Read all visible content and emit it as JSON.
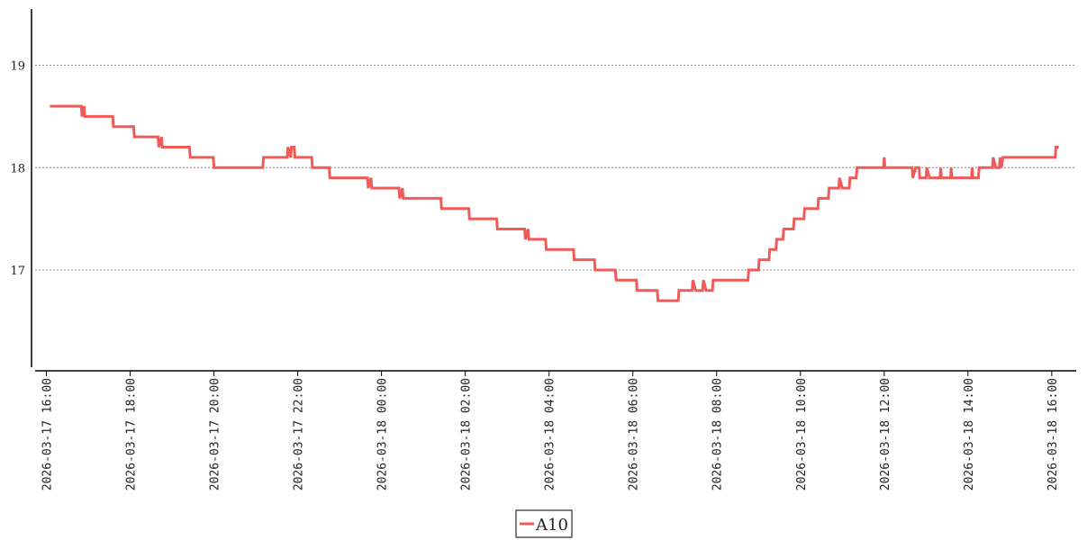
{
  "chart_data": {
    "type": "line",
    "title": "",
    "xlabel": "",
    "ylabel": "",
    "ylim": [
      16.05,
      19.55
    ],
    "xlim": [
      "2026-03-17 15:40",
      "2026-03-18 16:35"
    ],
    "y_ticks": [
      {
        "value": 17,
        "label": "17"
      },
      {
        "value": 18,
        "label": "18"
      },
      {
        "value": 19,
        "label": "19"
      }
    ],
    "x_ticks": [
      {
        "value": "2026-03-17 16:00",
        "label": "2026-03-17 16:00"
      },
      {
        "value": "2026-03-17 18:00",
        "label": "2026-03-17 18:00"
      },
      {
        "value": "2026-03-17 20:00",
        "label": "2026-03-17 20:00"
      },
      {
        "value": "2026-03-17 22:00",
        "label": "2026-03-17 22:00"
      },
      {
        "value": "2026-03-18 00:00",
        "label": "2026-03-18 00:00"
      },
      {
        "value": "2026-03-18 02:00",
        "label": "2026-03-18 02:00"
      },
      {
        "value": "2026-03-18 04:00",
        "label": "2026-03-18 04:00"
      },
      {
        "value": "2026-03-18 06:00",
        "label": "2026-03-18 06:00"
      },
      {
        "value": "2026-03-18 08:00",
        "label": "2026-03-18 08:00"
      },
      {
        "value": "2026-03-18 10:00",
        "label": "2026-03-18 10:00"
      },
      {
        "value": "2026-03-18 12:00",
        "label": "2026-03-18 12:00"
      },
      {
        "value": "2026-03-18 14:00",
        "label": "2026-03-18 14:00"
      },
      {
        "value": "2026-03-18 16:00",
        "label": "2026-03-18 16:00"
      }
    ],
    "grid": "horizontal dotted",
    "legend_position": "bottom-center",
    "series": [
      {
        "name": "A10",
        "color": "#f05a57",
        "points": [
          [
            "2026-03-17 16:05",
            18.6
          ],
          [
            "2026-03-17 16:50",
            18.6
          ],
          [
            "2026-03-17 16:51",
            18.5
          ],
          [
            "2026-03-17 16:54",
            18.6
          ],
          [
            "2026-03-17 16:55",
            18.5
          ],
          [
            "2026-03-17 17:35",
            18.5
          ],
          [
            "2026-03-17 17:36",
            18.4
          ],
          [
            "2026-03-17 18:05",
            18.4
          ],
          [
            "2026-03-17 18:06",
            18.3
          ],
          [
            "2026-03-17 18:40",
            18.3
          ],
          [
            "2026-03-17 18:41",
            18.2
          ],
          [
            "2026-03-17 18:45",
            18.3
          ],
          [
            "2026-03-17 18:46",
            18.2
          ],
          [
            "2026-03-17 19:25",
            18.2
          ],
          [
            "2026-03-17 19:26",
            18.1
          ],
          [
            "2026-03-17 19:59",
            18.1
          ],
          [
            "2026-03-17 20:00",
            18.0
          ],
          [
            "2026-03-17 21:10",
            18.0
          ],
          [
            "2026-03-17 21:11",
            18.1
          ],
          [
            "2026-03-17 21:45",
            18.1
          ],
          [
            "2026-03-17 21:46",
            18.2
          ],
          [
            "2026-03-17 21:50",
            18.1
          ],
          [
            "2026-03-17 21:51",
            18.2
          ],
          [
            "2026-03-17 21:55",
            18.2
          ],
          [
            "2026-03-17 21:56",
            18.1
          ],
          [
            "2026-03-17 22:20",
            18.1
          ],
          [
            "2026-03-17 22:21",
            18.0
          ],
          [
            "2026-03-17 22:45",
            18.0
          ],
          [
            "2026-03-17 22:46",
            17.9
          ],
          [
            "2026-03-17 23:40",
            17.9
          ],
          [
            "2026-03-17 23:41",
            17.8
          ],
          [
            "2026-03-17 23:45",
            17.9
          ],
          [
            "2026-03-17 23:46",
            17.8
          ],
          [
            "2026-03-18 00:25",
            17.8
          ],
          [
            "2026-03-18 00:26",
            17.7
          ],
          [
            "2026-03-18 00:30",
            17.8
          ],
          [
            "2026-03-18 00:31",
            17.7
          ],
          [
            "2026-03-18 01:25",
            17.7
          ],
          [
            "2026-03-18 01:26",
            17.6
          ],
          [
            "2026-03-18 02:05",
            17.6
          ],
          [
            "2026-03-18 02:06",
            17.5
          ],
          [
            "2026-03-18 02:45",
            17.5
          ],
          [
            "2026-03-18 02:46",
            17.4
          ],
          [
            "2026-03-18 03:25",
            17.4
          ],
          [
            "2026-03-18 03:26",
            17.3
          ],
          [
            "2026-03-18 03:30",
            17.4
          ],
          [
            "2026-03-18 03:31",
            17.3
          ],
          [
            "2026-03-18 03:55",
            17.3
          ],
          [
            "2026-03-18 03:56",
            17.2
          ],
          [
            "2026-03-18 04:35",
            17.2
          ],
          [
            "2026-03-18 04:36",
            17.1
          ],
          [
            "2026-03-18 05:05",
            17.1
          ],
          [
            "2026-03-18 05:06",
            17.0
          ],
          [
            "2026-03-18 05:35",
            17.0
          ],
          [
            "2026-03-18 05:36",
            16.9
          ],
          [
            "2026-03-18 06:05",
            16.9
          ],
          [
            "2026-03-18 06:06",
            16.8
          ],
          [
            "2026-03-18 06:35",
            16.8
          ],
          [
            "2026-03-18 06:36",
            16.7
          ],
          [
            "2026-03-18 07:05",
            16.7
          ],
          [
            "2026-03-18 07:06",
            16.8
          ],
          [
            "2026-03-18 07:25",
            16.8
          ],
          [
            "2026-03-18 07:26",
            16.9
          ],
          [
            "2026-03-18 07:30",
            16.8
          ],
          [
            "2026-03-18 07:40",
            16.8
          ],
          [
            "2026-03-18 07:41",
            16.9
          ],
          [
            "2026-03-18 07:45",
            16.8
          ],
          [
            "2026-03-18 07:54",
            16.8
          ],
          [
            "2026-03-18 07:55",
            16.9
          ],
          [
            "2026-03-18 08:45",
            16.9
          ],
          [
            "2026-03-18 08:46",
            17.0
          ],
          [
            "2026-03-18 09:00",
            17.0
          ],
          [
            "2026-03-18 09:01",
            17.1
          ],
          [
            "2026-03-18 09:15",
            17.1
          ],
          [
            "2026-03-18 09:16",
            17.2
          ],
          [
            "2026-03-18 09:25",
            17.2
          ],
          [
            "2026-03-18 09:26",
            17.3
          ],
          [
            "2026-03-18 09:35",
            17.3
          ],
          [
            "2026-03-18 09:36",
            17.4
          ],
          [
            "2026-03-18 09:50",
            17.4
          ],
          [
            "2026-03-18 09:51",
            17.5
          ],
          [
            "2026-03-18 10:05",
            17.5
          ],
          [
            "2026-03-18 10:06",
            17.6
          ],
          [
            "2026-03-18 10:25",
            17.6
          ],
          [
            "2026-03-18 10:26",
            17.7
          ],
          [
            "2026-03-18 10:40",
            17.7
          ],
          [
            "2026-03-18 10:41",
            17.8
          ],
          [
            "2026-03-18 10:55",
            17.8
          ],
          [
            "2026-03-18 10:56",
            17.9
          ],
          [
            "2026-03-18 11:00",
            17.8
          ],
          [
            "2026-03-18 11:10",
            17.8
          ],
          [
            "2026-03-18 11:11",
            17.9
          ],
          [
            "2026-03-18 11:20",
            17.9
          ],
          [
            "2026-03-18 11:21",
            18.0
          ],
          [
            "2026-03-18 11:59",
            18.0
          ],
          [
            "2026-03-18 12:00",
            18.1
          ],
          [
            "2026-03-18 12:01",
            18.0
          ],
          [
            "2026-03-18 12:40",
            18.0
          ],
          [
            "2026-03-18 12:41",
            17.9
          ],
          [
            "2026-03-18 12:45",
            18.0
          ],
          [
            "2026-03-18 12:50",
            18.0
          ],
          [
            "2026-03-18 12:51",
            17.9
          ],
          [
            "2026-03-18 13:00",
            17.9
          ],
          [
            "2026-03-18 13:01",
            18.0
          ],
          [
            "2026-03-18 13:05",
            17.9
          ],
          [
            "2026-03-18 13:20",
            17.9
          ],
          [
            "2026-03-18 13:21",
            18.0
          ],
          [
            "2026-03-18 13:22",
            17.9
          ],
          [
            "2026-03-18 13:35",
            17.9
          ],
          [
            "2026-03-18 13:36",
            18.0
          ],
          [
            "2026-03-18 13:37",
            17.9
          ],
          [
            "2026-03-18 14:05",
            17.9
          ],
          [
            "2026-03-18 14:06",
            18.0
          ],
          [
            "2026-03-18 14:07",
            17.9
          ],
          [
            "2026-03-18 14:15",
            17.9
          ],
          [
            "2026-03-18 14:16",
            18.0
          ],
          [
            "2026-03-18 14:35",
            18.0
          ],
          [
            "2026-03-18 14:36",
            18.1
          ],
          [
            "2026-03-18 14:40",
            18.0
          ],
          [
            "2026-03-18 14:45",
            18.0
          ],
          [
            "2026-03-18 14:46",
            18.1
          ],
          [
            "2026-03-18 14:48",
            18.0
          ],
          [
            "2026-03-18 14:50",
            18.1
          ],
          [
            "2026-03-18 16:05",
            18.1
          ],
          [
            "2026-03-18 16:06",
            18.2
          ],
          [
            "2026-03-18 16:10",
            18.2
          ]
        ]
      }
    ]
  }
}
